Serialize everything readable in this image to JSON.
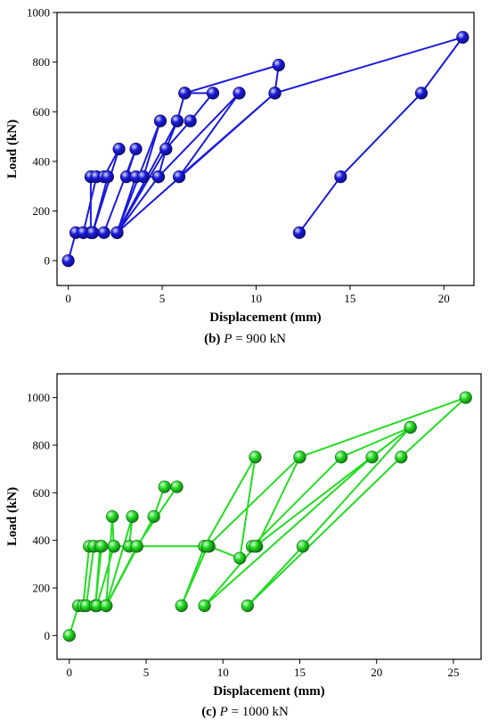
{
  "chart_data": [
    {
      "type": "line",
      "panel": "b",
      "caption": {
        "label": "(b)",
        "variable": "P",
        "value": "= 900 kN"
      },
      "xlabel": "Displacement (mm)",
      "ylabel": "Load (kN)",
      "xlim": [
        -0.6,
        21.6
      ],
      "ylim": [
        -100,
        1000
      ],
      "xticks": [
        0,
        5,
        10,
        15,
        20
      ],
      "yticks": [
        0,
        200,
        400,
        600,
        800,
        1000
      ],
      "grid": false,
      "color": "#1a1adf",
      "series": [
        {
          "points": [
            [
              0,
              0
            ],
            [
              0.4,
              113
            ],
            [
              0.8,
              113
            ],
            [
              1.2,
              113
            ],
            [
              1.2,
              338
            ],
            [
              1.5,
              338
            ],
            [
              0.8,
              113
            ],
            [
              1.3,
              113
            ],
            [
              2.7,
              450
            ],
            [
              1.9,
              338
            ],
            [
              2.1,
              338
            ],
            [
              1.3,
              113
            ],
            [
              1.9,
              113
            ],
            [
              3.6,
              450
            ],
            [
              3.1,
              338
            ],
            [
              3.6,
              338
            ],
            [
              2.6,
              113
            ],
            [
              4.9,
              563
            ],
            [
              4.0,
              338
            ],
            [
              4.8,
              338
            ],
            [
              2.6,
              113
            ],
            [
              5.2,
              450
            ],
            [
              5.8,
              563
            ],
            [
              6.2,
              675
            ],
            [
              7.7,
              675
            ],
            [
              6.5,
              563
            ],
            [
              5.2,
              450
            ],
            [
              4.8,
              338
            ],
            [
              9.1,
              675
            ],
            [
              5.9,
              338
            ],
            [
              11.0,
              675
            ],
            [
              11.2,
              788
            ],
            [
              6.2,
              675
            ],
            [
              5.8,
              563
            ],
            [
              2.6,
              113
            ],
            [
              11.0,
              675
            ],
            [
              21.0,
              900
            ],
            [
              18.8,
              675
            ],
            [
              14.5,
              338
            ],
            [
              12.3,
              113
            ]
          ]
        }
      ]
    },
    {
      "type": "line",
      "panel": "c",
      "caption": {
        "label": "(c)",
        "variable": "P",
        "value": "= 1000 kN"
      },
      "xlabel": "Displacement (mm)",
      "ylabel": "Load (kN)",
      "xlim": [
        -0.8,
        26.8
      ],
      "ylim": [
        -100,
        1100
      ],
      "xticks": [
        0,
        5,
        10,
        15,
        20,
        25
      ],
      "yticks": [
        0,
        200,
        400,
        600,
        800,
        1000
      ],
      "grid": false,
      "color": "#22dd22",
      "series": [
        {
          "points": [
            [
              0,
              0
            ],
            [
              0.6,
              125
            ],
            [
              0.9,
              125
            ],
            [
              1.3,
              375
            ],
            [
              1.6,
              375
            ],
            [
              1.1,
              125
            ],
            [
              1.7,
              125
            ],
            [
              2.0,
              375
            ],
            [
              2.1,
              375
            ],
            [
              1.7,
              125
            ],
            [
              2.4,
              125
            ],
            [
              2.8,
              500
            ],
            [
              2.9,
              375
            ],
            [
              1.8,
              125
            ],
            [
              2.4,
              125
            ],
            [
              4.1,
              500
            ],
            [
              3.9,
              375
            ],
            [
              4.4,
              375
            ],
            [
              2.4,
              125
            ],
            [
              5.5,
              500
            ],
            [
              6.2,
              625
            ],
            [
              7.0,
              625
            ],
            [
              4.4,
              375
            ],
            [
              2.9,
              375
            ],
            [
              8.8,
              375
            ],
            [
              12.1,
              750
            ],
            [
              11.1,
              325
            ],
            [
              9.1,
              375
            ],
            [
              8.8,
              375
            ],
            [
              7.3,
              125
            ],
            [
              9.0,
              375
            ],
            [
              15.0,
              750
            ],
            [
              12.2,
              375
            ],
            [
              11.9,
              375
            ],
            [
              17.7,
              750
            ],
            [
              22.2,
              875
            ],
            [
              12.1,
              375
            ],
            [
              8.8,
              125
            ],
            [
              19.7,
              750
            ],
            [
              22.2,
              875
            ],
            [
              15.2,
              375
            ],
            [
              11.6,
              125
            ],
            [
              21.6,
              750
            ],
            [
              25.8,
              1000
            ],
            [
              15.0,
              750
            ]
          ]
        }
      ]
    }
  ]
}
